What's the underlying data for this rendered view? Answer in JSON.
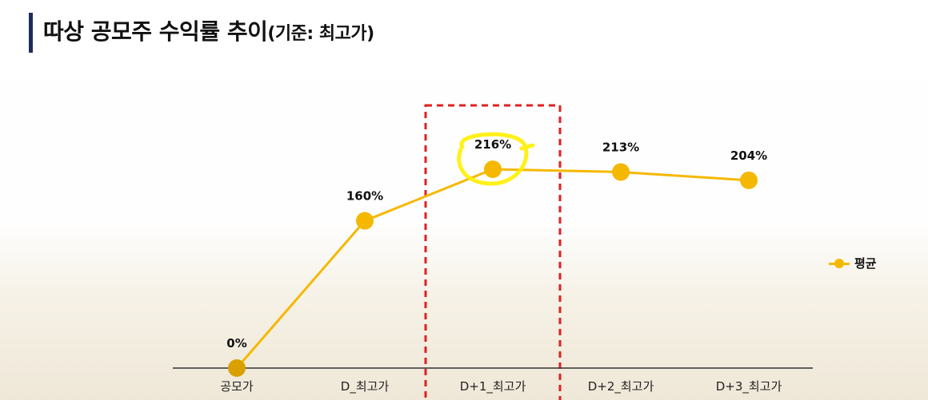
{
  "title": {
    "main": "따상 공모주 수익률 추이",
    "sub": "(기준: 최고가)"
  },
  "colors": {
    "accent_bar": "#1f2d5c",
    "series": "#f5b800",
    "first_point": "#d9a000",
    "highlight_box": "#e02020",
    "highlight_circle": "#fff000",
    "axis": "#333333"
  },
  "chart_data": {
    "type": "line",
    "categories": [
      "공모가",
      "D_최고가",
      "D+1_최고가",
      "D+2_최고가",
      "D+3_최고가"
    ],
    "series": [
      {
        "name": "평균",
        "values": [
          0,
          160,
          216,
          213,
          204
        ],
        "labels": [
          "0%",
          "160%",
          "216%",
          "213%",
          "204%"
        ]
      }
    ],
    "highlight_category": "D+1_최고가",
    "legend": "right",
    "grid": false
  }
}
